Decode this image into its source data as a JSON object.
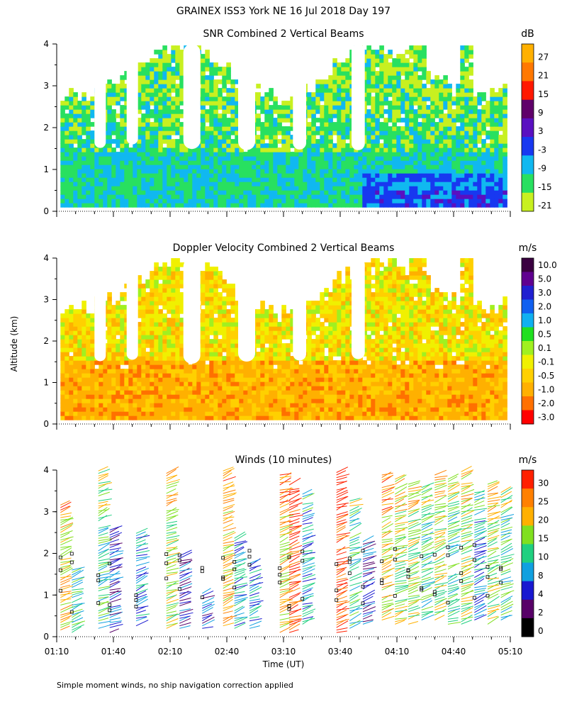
{
  "figure": {
    "title": "GRAINEX ISS3 York NE  16 Jul 2018 Day 197",
    "footnote": "Simple moment winds, no ship navigation correction applied",
    "xlabel": "Time (UT)",
    "ylabel": "Altitude (km)"
  },
  "chart_data": [
    {
      "type": "heatmap",
      "title": "SNR Combined 2 Vertical Beams",
      "units": "dB",
      "xlim": [
        "01:10",
        "05:10"
      ],
      "ylim": [
        0,
        4
      ],
      "x_ticks": [
        "01:10",
        "01:40",
        "02:10",
        "02:40",
        "03:10",
        "03:40",
        "04:10",
        "04:40",
        "05:10"
      ],
      "y_ticks": [
        "0",
        "1",
        "2",
        "3",
        "4"
      ],
      "colorbar": [
        {
          "label": "27",
          "color": "#ffb000"
        },
        {
          "label": "21",
          "color": "#ff7800"
        },
        {
          "label": "15",
          "color": "#ff1800"
        },
        {
          "label": "9",
          "color": "#60006a"
        },
        {
          "label": "3",
          "color": "#5a10c0"
        },
        {
          "label": "-3",
          "color": "#1838f0"
        },
        {
          "label": "-9",
          "color": "#10b8f0"
        },
        {
          "label": "-15",
          "color": "#28e060"
        },
        {
          "label": "-21",
          "color": "#c8f020"
        }
      ],
      "gaps_utc": [
        "01:30-01:36",
        "01:47-01:53",
        "02:17-02:26",
        "02:46-02:55",
        "03:15-03:22",
        "03:46-03:53"
      ],
      "features": "Weak SNR (-21 to -9 dB) through most of the column; strong SNR (-3 to 9 dB) in the lowest 0.5 km after 02:50, peaking near 03:35 at 1 km.",
      "grid": false
    },
    {
      "type": "heatmap",
      "title": "Doppler Velocity Combined 2 Vertical Beams",
      "units": "m/s",
      "xlim": [
        "01:10",
        "05:10"
      ],
      "ylim": [
        0,
        4
      ],
      "x_ticks": [
        "01:10",
        "01:40",
        "02:10",
        "02:40",
        "03:10",
        "03:40",
        "04:10",
        "04:40",
        "05:10"
      ],
      "y_ticks": [
        "0",
        "1",
        "2",
        "3",
        "4"
      ],
      "colorbar": [
        {
          "label": "10.0",
          "color": "#3a0040"
        },
        {
          "label": "5.0",
          "color": "#600090"
        },
        {
          "label": "3.0",
          "color": "#2020d0"
        },
        {
          "label": "2.0",
          "color": "#1060f0"
        },
        {
          "label": "1.0",
          "color": "#10b0f0"
        },
        {
          "label": "0.5",
          "color": "#20e020"
        },
        {
          "label": "0.1",
          "color": "#a0f020"
        },
        {
          "label": "-0.1",
          "color": "#f0f000"
        },
        {
          "label": "-0.5",
          "color": "#ffd000"
        },
        {
          "label": "-1.0",
          "color": "#ffb000"
        },
        {
          "label": "-2.0",
          "color": "#ff7000"
        },
        {
          "label": "-3.0",
          "color": "#ff0000"
        }
      ],
      "features": "Mostly -0.5 to -1.0 m/s (downward) below 1.5 km; -0.1 to 0.5 m/s patches aloft.",
      "grid": false
    },
    {
      "type": "barbs",
      "title": "Winds (10 minutes)",
      "units": "m/s",
      "xlim": [
        "01:10",
        "05:10"
      ],
      "ylim": [
        0,
        4
      ],
      "x_ticks": [
        "01:10",
        "01:40",
        "02:10",
        "02:40",
        "03:10",
        "03:40",
        "04:10",
        "04:40",
        "05:10"
      ],
      "y_ticks": [
        "0",
        "1",
        "2",
        "3",
        "4"
      ],
      "colorbar": [
        {
          "label": "30",
          "color": "#ff2000"
        },
        {
          "label": "25",
          "color": "#ff8000"
        },
        {
          "label": "20",
          "color": "#ffb000"
        },
        {
          "label": "15",
          "color": "#80e020"
        },
        {
          "label": "10",
          "color": "#20d080"
        },
        {
          "label": "8",
          "color": "#10a0e0"
        },
        {
          "label": "4",
          "color": "#1818d0"
        },
        {
          "label": "2",
          "color": "#580068"
        },
        {
          "label": "0",
          "color": "#000000"
        }
      ],
      "profiles": [
        {
          "time": "01:12",
          "top_km": 3.2,
          "base_km": 0.1,
          "speed": 6
        },
        {
          "time": "01:18",
          "top_km": 1.7,
          "base_km": 0.1,
          "speed": 4
        },
        {
          "time": "01:32",
          "top_km": 4.0,
          "base_km": 0.2,
          "speed": 4
        },
        {
          "time": "01:38",
          "top_km": 2.6,
          "base_km": 0.1,
          "speed": 2
        },
        {
          "time": "01:52",
          "top_km": 2.5,
          "base_km": 0.2,
          "speed": 3
        },
        {
          "time": "02:08",
          "top_km": 4.0,
          "base_km": 0.2,
          "speed": 5
        },
        {
          "time": "02:15",
          "top_km": 2.0,
          "base_km": 0.2,
          "speed": 2
        },
        {
          "time": "02:27",
          "top_km": 1.1,
          "base_km": 0.2,
          "speed": 2
        },
        {
          "time": "02:38",
          "top_km": 4.0,
          "base_km": 0.2,
          "speed": 6
        },
        {
          "time": "02:44",
          "top_km": 2.4,
          "base_km": 0.2,
          "speed": 3
        },
        {
          "time": "02:52",
          "top_km": 1.8,
          "base_km": 0.2,
          "speed": 3
        },
        {
          "time": "03:08",
          "top_km": 3.9,
          "base_km": 0.1,
          "speed": 6
        },
        {
          "time": "03:13",
          "top_km": 3.7,
          "base_km": 0.1,
          "speed": 8
        },
        {
          "time": "03:20",
          "top_km": 3.5,
          "base_km": 0.3,
          "speed": 3
        },
        {
          "time": "03:38",
          "top_km": 4.0,
          "base_km": 0.1,
          "speed": 8
        },
        {
          "time": "03:45",
          "top_km": 3.3,
          "base_km": 0.2,
          "speed": 4
        },
        {
          "time": "03:52",
          "top_km": 2.3,
          "base_km": 0.3,
          "speed": 2
        },
        {
          "time": "04:02",
          "top_km": 3.9,
          "base_km": 0.4,
          "speed": 6
        },
        {
          "time": "04:09",
          "top_km": 3.8,
          "base_km": 0.3,
          "speed": 5
        },
        {
          "time": "04:16",
          "top_km": 3.7,
          "base_km": 0.3,
          "speed": 5
        },
        {
          "time": "04:23",
          "top_km": 3.6,
          "base_km": 0.4,
          "speed": 4
        },
        {
          "time": "04:30",
          "top_km": 3.9,
          "base_km": 0.4,
          "speed": 5
        },
        {
          "time": "04:37",
          "top_km": 3.8,
          "base_km": 0.3,
          "speed": 4
        },
        {
          "time": "04:44",
          "top_km": 4.0,
          "base_km": 0.3,
          "speed": 5
        },
        {
          "time": "04:51",
          "top_km": 3.5,
          "base_km": 0.4,
          "speed": 3
        },
        {
          "time": "04:58",
          "top_km": 3.7,
          "base_km": 0.3,
          "speed": 5
        },
        {
          "time": "05:05",
          "top_km": 3.5,
          "base_km": 0.4,
          "speed": 4
        }
      ],
      "grid": false
    }
  ]
}
